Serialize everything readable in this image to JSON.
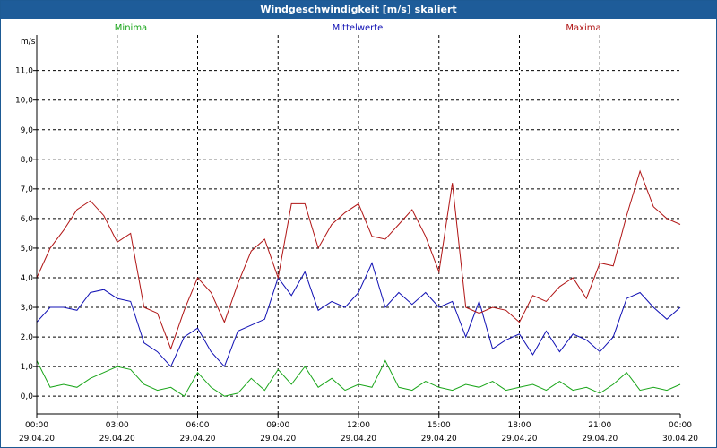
{
  "window": {
    "title": "Windgeschwindigkeit [m/s] skaliert"
  },
  "legend": {
    "min": "Minima",
    "mean": "Mittelwerte",
    "max": "Maxima"
  },
  "colors": {
    "min": "#19a519",
    "mean": "#1010b4",
    "max": "#b01414",
    "titlebar": "#1e5c99",
    "grid": "#000000"
  },
  "chart_data": {
    "type": "line",
    "title": "Windgeschwindigkeit [m/s] skaliert",
    "ylabel": "m/s",
    "xlabel": "",
    "ylim": [
      -0.6,
      12.2
    ],
    "yticks": [
      "0,0",
      "1,0",
      "2,0",
      "3,0",
      "4,0",
      "5,0",
      "6,0",
      "7,0",
      "8,0",
      "9,0",
      "10,0",
      "11,0"
    ],
    "xlim_hours": [
      0,
      24
    ],
    "xticks": [
      {
        "time": "00:00",
        "date": "29.04.20"
      },
      {
        "time": "03:00",
        "date": "29.04.20"
      },
      {
        "time": "06:00",
        "date": "29.04.20"
      },
      {
        "time": "09:00",
        "date": "29.04.20"
      },
      {
        "time": "12:00",
        "date": "29.04.20"
      },
      {
        "time": "15:00",
        "date": "29.04.20"
      },
      {
        "time": "18:00",
        "date": "29.04.20"
      },
      {
        "time": "21:00",
        "date": "29.04.20"
      },
      {
        "time": "00:00",
        "date": "30.04.20"
      }
    ],
    "grid": true,
    "legend_position": "top",
    "x_hours": [
      0,
      0.5,
      1,
      1.5,
      2,
      2.5,
      3,
      3.5,
      4,
      4.5,
      5,
      5.5,
      6,
      6.5,
      7,
      7.5,
      8,
      8.5,
      9,
      9.5,
      10,
      10.5,
      11,
      11.5,
      12,
      12.5,
      13,
      13.5,
      14,
      14.5,
      15,
      15.5,
      16,
      16.5,
      17,
      17.5,
      18,
      18.5,
      19,
      19.5,
      20,
      20.5,
      21,
      21.5,
      22,
      22.5,
      23,
      23.5,
      24
    ],
    "series": [
      {
        "name": "Minima",
        "values": [
          1.2,
          0.3,
          0.4,
          0.3,
          0.6,
          0.8,
          1.0,
          0.9,
          0.4,
          0.2,
          0.3,
          0.0,
          0.8,
          0.3,
          0.0,
          0.1,
          0.6,
          0.2,
          0.9,
          0.4,
          1.0,
          0.3,
          0.6,
          0.2,
          0.4,
          0.3,
          1.2,
          0.3,
          0.2,
          0.5,
          0.3,
          0.2,
          0.4,
          0.3,
          0.5,
          0.2,
          0.3,
          0.4,
          0.2,
          0.5,
          0.2,
          0.3,
          0.1,
          0.4,
          0.8,
          0.2,
          0.3,
          0.2,
          0.4
        ]
      },
      {
        "name": "Mittelwerte",
        "values": [
          2.5,
          3.0,
          3.0,
          2.9,
          3.5,
          3.6,
          3.3,
          3.2,
          1.8,
          1.5,
          1.0,
          2.0,
          2.3,
          1.5,
          1.0,
          2.2,
          2.4,
          2.6,
          4.0,
          3.4,
          4.2,
          2.9,
          3.2,
          3.0,
          3.5,
          4.5,
          3.0,
          3.5,
          3.1,
          3.5,
          3.0,
          3.2,
          2.0,
          3.2,
          1.6,
          1.9,
          2.1,
          1.4,
          2.2,
          1.5,
          2.1,
          1.9,
          1.5,
          2.0,
          3.3,
          3.5,
          3.0,
          2.6,
          3.0
        ]
      },
      {
        "name": "Maxima",
        "values": [
          4.0,
          5.0,
          5.6,
          6.3,
          6.6,
          6.1,
          5.2,
          5.5,
          3.0,
          2.8,
          1.6,
          2.9,
          4.0,
          3.5,
          2.5,
          3.8,
          4.9,
          5.3,
          4.0,
          6.5,
          6.5,
          5.0,
          5.8,
          6.2,
          6.5,
          5.4,
          5.3,
          5.8,
          6.3,
          5.4,
          4.2,
          7.2,
          3.0,
          2.8,
          3.0,
          2.9,
          2.5,
          3.4,
          3.2,
          3.7,
          4.0,
          3.3,
          4.5,
          4.4,
          6.1,
          7.6,
          6.4,
          6.0,
          5.8
        ]
      }
    ]
  }
}
